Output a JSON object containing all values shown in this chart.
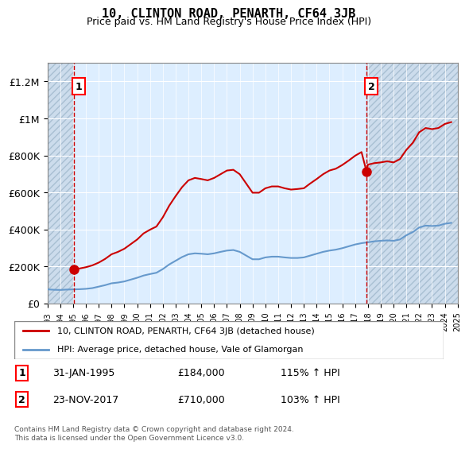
{
  "title": "10, CLINTON ROAD, PENARTH, CF64 3JB",
  "subtitle": "Price paid vs. HM Land Registry's House Price Index (HPI)",
  "background_color": "#ddeeff",
  "hatch_color": "#b0c8e8",
  "ylim": [
    0,
    1300000
  ],
  "yticks": [
    0,
    200000,
    400000,
    600000,
    800000,
    1000000,
    1200000
  ],
  "ytick_labels": [
    "£0",
    "£200K",
    "£400K",
    "£600K",
    "£800K",
    "£1M",
    "£1.2M"
  ],
  "x_start_year": 1993,
  "x_end_year": 2025,
  "marker1": {
    "year": 1995.08,
    "value": 184000,
    "label": "1"
  },
  "marker2": {
    "year": 2017.9,
    "value": 710000,
    "label": "2"
  },
  "vline1_year": 1995.08,
  "vline2_year": 2017.9,
  "legend_line1": "10, CLINTON ROAD, PENARTH, CF64 3JB (detached house)",
  "legend_line2": "HPI: Average price, detached house, Vale of Glamorgan",
  "note1_label": "1",
  "note1_date": "31-JAN-1995",
  "note1_price": "£184,000",
  "note1_hpi": "115% ↑ HPI",
  "note2_label": "2",
  "note2_date": "23-NOV-2017",
  "note2_price": "£710,000",
  "note2_hpi": "103% ↑ HPI",
  "footer": "Contains HM Land Registry data © Crown copyright and database right 2024.\nThis data is licensed under the Open Government Licence v3.0.",
  "line_color_red": "#cc0000",
  "line_color_blue": "#6699cc",
  "hpi_line_data_x": [
    1993.0,
    1993.5,
    1994.0,
    1994.5,
    1995.0,
    1995.5,
    1996.0,
    1996.5,
    1997.0,
    1997.5,
    1998.0,
    1998.5,
    1999.0,
    1999.5,
    2000.0,
    2000.5,
    2001.0,
    2001.5,
    2002.0,
    2002.5,
    2003.0,
    2003.5,
    2004.0,
    2004.5,
    2005.0,
    2005.5,
    2006.0,
    2006.5,
    2007.0,
    2007.5,
    2008.0,
    2008.5,
    2009.0,
    2009.5,
    2010.0,
    2010.5,
    2011.0,
    2011.5,
    2012.0,
    2012.5,
    2013.0,
    2013.5,
    2014.0,
    2014.5,
    2015.0,
    2015.5,
    2016.0,
    2016.5,
    2017.0,
    2017.5,
    2018.0,
    2018.5,
    2019.0,
    2019.5,
    2020.0,
    2020.5,
    2021.0,
    2021.5,
    2022.0,
    2022.5,
    2023.0,
    2023.5,
    2024.0,
    2024.5
  ],
  "hpi_line_data_y": [
    75000,
    73000,
    72000,
    74000,
    75000,
    76000,
    78000,
    82000,
    90000,
    98000,
    108000,
    112000,
    118000,
    128000,
    138000,
    150000,
    158000,
    165000,
    185000,
    210000,
    230000,
    250000,
    265000,
    270000,
    268000,
    265000,
    270000,
    278000,
    285000,
    288000,
    278000,
    258000,
    238000,
    238000,
    248000,
    252000,
    252000,
    248000,
    245000,
    245000,
    248000,
    258000,
    268000,
    278000,
    285000,
    290000,
    298000,
    308000,
    318000,
    325000,
    330000,
    335000,
    338000,
    340000,
    338000,
    345000,
    368000,
    385000,
    410000,
    420000,
    418000,
    420000,
    430000,
    435000
  ],
  "price_line_data_x": [
    1995.08,
    1995.5,
    1996.0,
    1996.5,
    1997.0,
    1997.5,
    1998.0,
    1998.5,
    1999.0,
    1999.5,
    2000.0,
    2000.5,
    2001.0,
    2001.5,
    2002.0,
    2002.5,
    2003.0,
    2003.5,
    2004.0,
    2004.5,
    2005.0,
    2005.5,
    2006.0,
    2006.5,
    2007.0,
    2007.5,
    2008.0,
    2008.5,
    2009.0,
    2009.5,
    2010.0,
    2010.5,
    2011.0,
    2011.5,
    2012.0,
    2012.5,
    2013.0,
    2013.5,
    2014.0,
    2014.5,
    2015.0,
    2015.5,
    2016.0,
    2016.5,
    2017.0,
    2017.5,
    2017.9,
    2018.0,
    2018.5,
    2019.0,
    2019.5,
    2020.0,
    2020.5,
    2021.0,
    2021.5,
    2022.0,
    2022.5,
    2023.0,
    2023.5,
    2024.0,
    2024.5
  ],
  "price_line_data_y": [
    184000,
    188000,
    195000,
    205000,
    220000,
    240000,
    265000,
    278000,
    295000,
    320000,
    345000,
    378000,
    398000,
    415000,
    465000,
    528000,
    580000,
    628000,
    665000,
    678000,
    672000,
    665000,
    678000,
    698000,
    718000,
    722000,
    698000,
    648000,
    598000,
    598000,
    622000,
    632000,
    632000,
    622000,
    615000,
    618000,
    622000,
    648000,
    672000,
    698000,
    718000,
    728000,
    748000,
    772000,
    798000,
    818000,
    710000,
    750000,
    758000,
    762000,
    768000,
    762000,
    780000,
    830000,
    868000,
    925000,
    948000,
    942000,
    948000,
    970000,
    980000
  ]
}
